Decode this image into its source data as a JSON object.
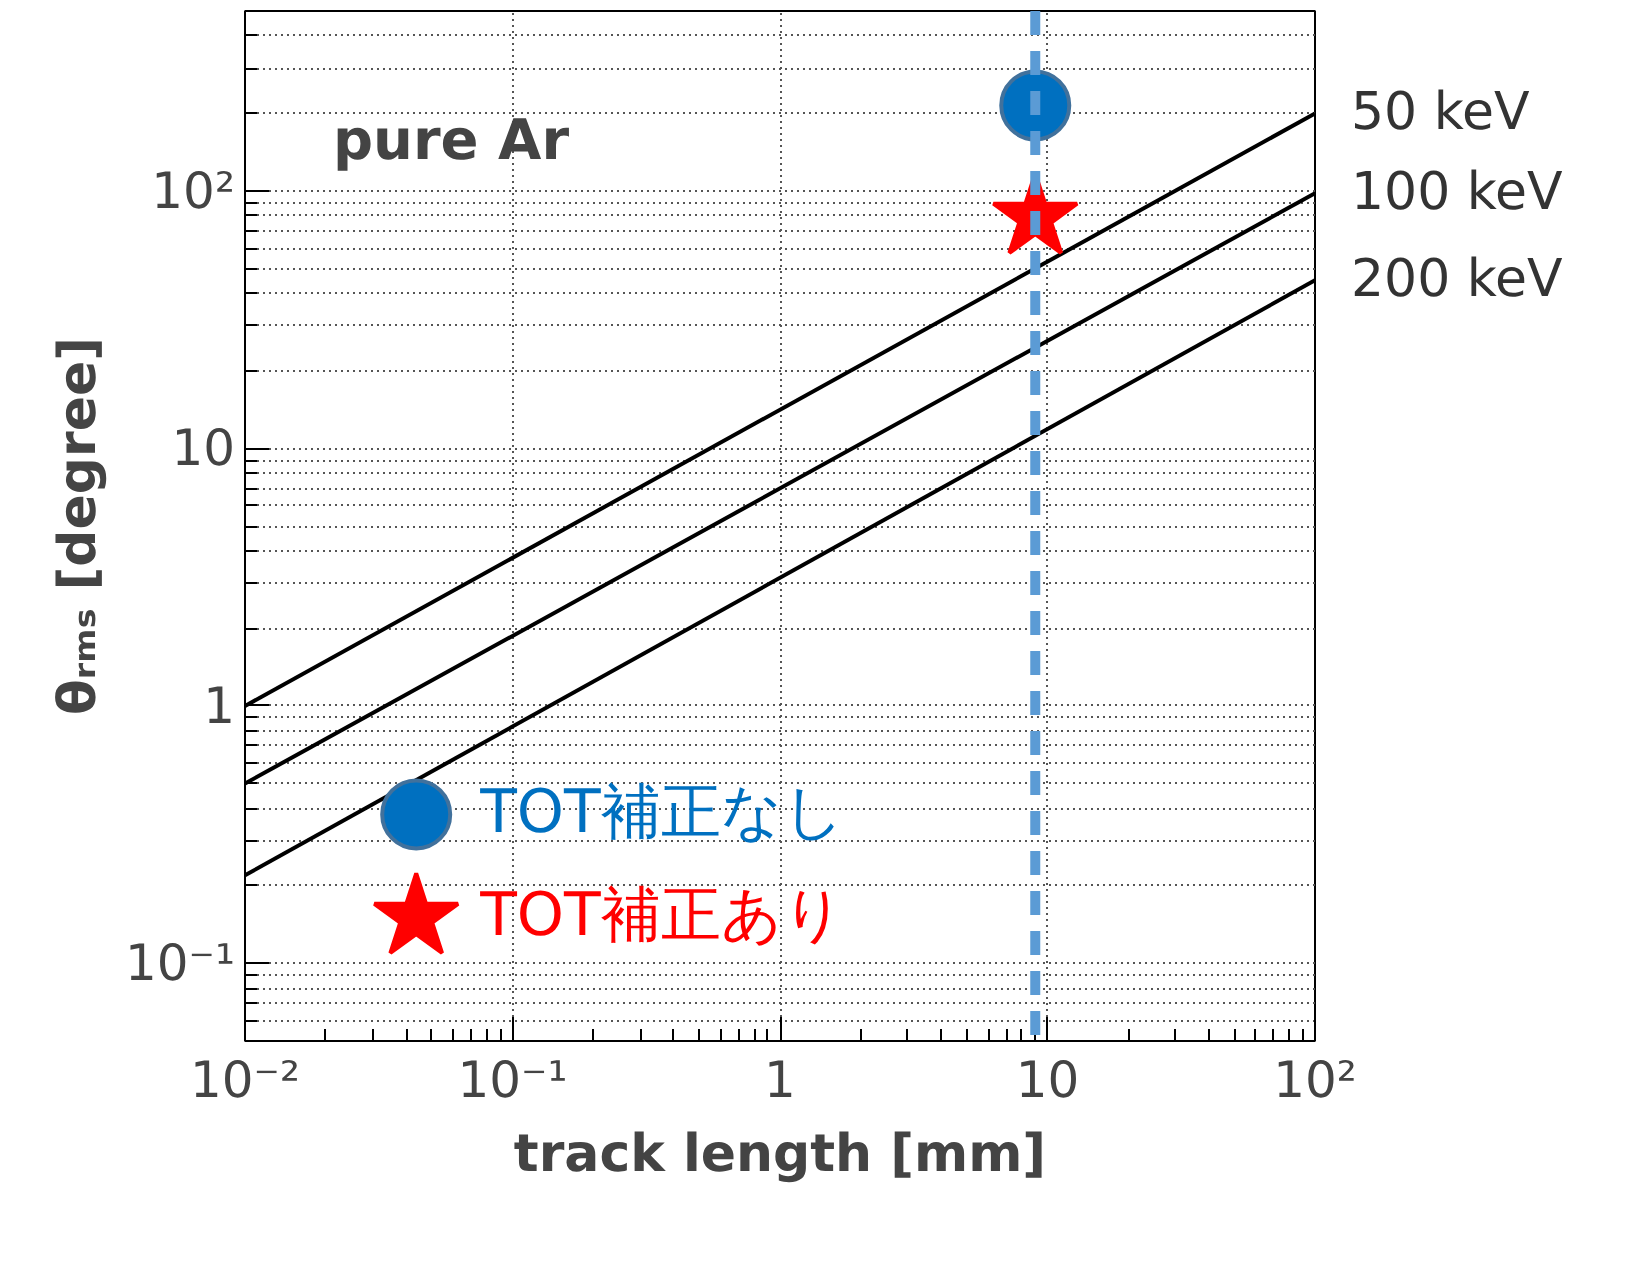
{
  "chart_data": {
    "type": "line",
    "xlabel": "track length [mm]",
    "ylabel": "θᵣₘₛ [degree]",
    "log": "xy",
    "xlim": [
      0.01,
      100
    ],
    "ylim": [
      0.05,
      500
    ],
    "xticks": [
      {
        "value": 0.01,
        "label": "10⁻²"
      },
      {
        "value": 0.1,
        "label": "10⁻¹"
      },
      1,
      10,
      {
        "value": 100,
        "label": "10²"
      }
    ],
    "yticks": [
      {
        "value": 0.1,
        "label": "10⁻¹"
      },
      1,
      10,
      {
        "value": 100,
        "label": "10²"
      }
    ],
    "grid": true,
    "legend": "bottom left",
    "marker": "none",
    "line_style": "solid",
    "series": [
      {
        "name": "50 keV",
        "color": "#000000",
        "x": [
          0.01,
          100
        ],
        "values": [
          1.0,
          200
        ]
      },
      {
        "name": "100 keV",
        "color": "#000000",
        "x": [
          0.01,
          100
        ],
        "values": [
          0.5,
          98
        ]
      },
      {
        "name": "200 keV",
        "color": "#000000",
        "x": [
          0.01,
          100
        ],
        "values": [
          0.22,
          45
        ]
      },
      {
        "name": "TOT補正なし",
        "type": "scatter",
        "marker": "circle",
        "color": "#0070c0",
        "x": [
          9
        ],
        "values": [
          215
        ]
      },
      {
        "name": "TOT補正あり",
        "type": "scatter",
        "marker": "star",
        "color": "#ff0000",
        "x": [
          9
        ],
        "values": [
          79
        ]
      }
    ],
    "ref_lines": [
      {
        "axis": "x",
        "value": 9,
        "color": "#5b9bd5",
        "line_style": "dashed"
      }
    ],
    "annotations": [
      "pure Ar"
    ]
  }
}
